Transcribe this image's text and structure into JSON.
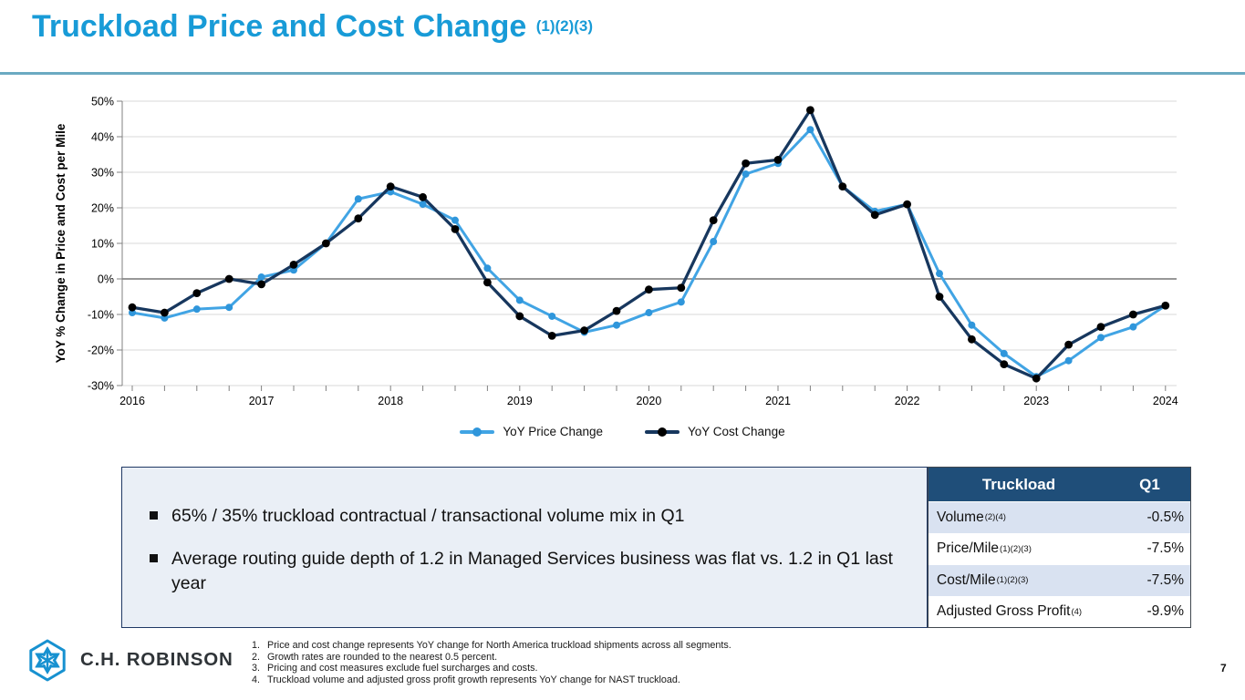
{
  "slide": {
    "title": "Truckload Price and Cost Change",
    "title_superscript": "(1)(2)(3)",
    "page_number": "7",
    "accent_color": "#189BD7"
  },
  "chart_data": {
    "type": "line",
    "ylabel": "YoY % Change in Price and Cost per Mile",
    "ylim": [
      -30,
      50
    ],
    "ytick_step": 10,
    "ytick_suffix": "%",
    "grid": true,
    "legend_position": "bottom",
    "x_years": [
      2016,
      2017,
      2018,
      2019,
      2020,
      2021,
      2022,
      2023,
      2024
    ],
    "categories": [
      "2016 Q1",
      "2016 Q2",
      "2016 Q3",
      "2016 Q4",
      "2017 Q1",
      "2017 Q2",
      "2017 Q3",
      "2017 Q4",
      "2018 Q1",
      "2018 Q2",
      "2018 Q3",
      "2018 Q4",
      "2019 Q1",
      "2019 Q2",
      "2019 Q3",
      "2019 Q4",
      "2020 Q1",
      "2020 Q2",
      "2020 Q3",
      "2020 Q4",
      "2021 Q1",
      "2021 Q2",
      "2021 Q3",
      "2021 Q4",
      "2022 Q1",
      "2022 Q2",
      "2022 Q3",
      "2022 Q4",
      "2023 Q1",
      "2023 Q2",
      "2023 Q3",
      "2023 Q4",
      "2024 Q1"
    ],
    "series": [
      {
        "name": "YoY Price Change",
        "color": "#41A4E4",
        "marker_color": "#2F96DB",
        "values": [
          -9.5,
          -11,
          -8.5,
          -8,
          0.5,
          2.5,
          10,
          22.5,
          24.5,
          21,
          16.5,
          3,
          -6,
          -10.5,
          -15,
          -13,
          -9.5,
          -6.5,
          10.5,
          29.5,
          32.5,
          42,
          26,
          19,
          21,
          1.5,
          -13,
          -21,
          -27.5,
          -23,
          -16.5,
          -13.5,
          -7.5
        ]
      },
      {
        "name": "YoY Cost Change",
        "color": "#17375E",
        "marker_color": "#000000",
        "values": [
          -8,
          -9.5,
          -4,
          0,
          -1.5,
          4,
          10,
          17,
          26,
          23,
          14,
          -1,
          -10.5,
          -16,
          -14.5,
          -9,
          -3,
          -2.5,
          16.5,
          32.5,
          33.5,
          47.5,
          26,
          18,
          21,
          -5,
          -17,
          -24,
          -28,
          -18.5,
          -13.5,
          -10,
          -7.5
        ]
      }
    ]
  },
  "highlights": {
    "bullets": [
      "65% / 35% truckload contractual / transactional volume mix in Q1",
      "Average routing guide depth of 1.2 in Managed Services business was flat vs. 1.2 in Q1 last year"
    ]
  },
  "table": {
    "header": [
      "Truckload",
      "Q1"
    ],
    "header_bg": "#1F4E79",
    "alt_row_bg": "#D9E2F1",
    "rows": [
      {
        "label": "Volume",
        "superscript": "(2)(4)",
        "value": "-0.5%"
      },
      {
        "label": "Price/Mile",
        "superscript": "(1)(2)(3)",
        "value": "-7.5%"
      },
      {
        "label": "Cost/Mile",
        "superscript": "(1)(2)(3)",
        "value": "-7.5%"
      },
      {
        "label": "Adjusted Gross Profit",
        "superscript": "(4)",
        "value": "-9.9%"
      }
    ]
  },
  "footnotes": [
    {
      "num": "1.",
      "text": "Price and cost change represents YoY change for North America truckload shipments across all segments."
    },
    {
      "num": "2.",
      "text": "Growth rates are rounded to the nearest 0.5 percent."
    },
    {
      "num": "3.",
      "text": "Pricing and cost measures exclude fuel surcharges and costs."
    },
    {
      "num": "4.",
      "text": "Truckload volume and adjusted gross profit growth represents YoY change for NAST truckload."
    }
  ],
  "footer": {
    "logo_text": "C.H. ROBINSON"
  }
}
